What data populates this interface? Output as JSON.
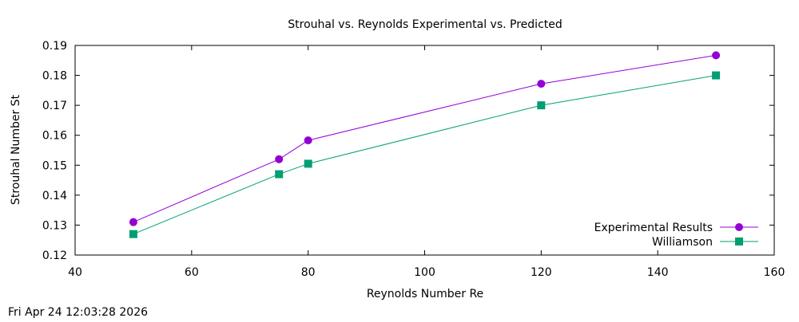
{
  "chart_data": {
    "type": "line",
    "title": "Strouhal vs. Reynolds Experimental vs. Predicted",
    "xlabel": "Reynolds Number Re",
    "ylabel": "Strouhal Number St",
    "xlim": [
      40,
      160
    ],
    "ylim": [
      0.12,
      0.19
    ],
    "xticks": [
      40,
      60,
      80,
      100,
      120,
      140,
      160
    ],
    "yticks": [
      0.12,
      0.13,
      0.14,
      0.15,
      0.16,
      0.17,
      0.18,
      0.19
    ],
    "ytick_labels": [
      "0.12",
      "0.13",
      "0.14",
      "0.15",
      "0.16",
      "0.17",
      "0.18",
      "0.19"
    ],
    "grid": false,
    "legend_position": "bottom-right",
    "series": [
      {
        "name": "Experimental Results",
        "color": "#9400d3",
        "marker": "circle",
        "x": [
          50,
          75,
          80,
          120,
          150
        ],
        "y": [
          0.131,
          0.152,
          0.1583,
          0.1772,
          0.1867
        ]
      },
      {
        "name": "Williamson",
        "color": "#009e73",
        "marker": "square",
        "x": [
          50,
          75,
          80,
          120,
          150
        ],
        "y": [
          0.127,
          0.147,
          0.1505,
          0.17,
          0.18
        ]
      }
    ]
  },
  "timestamp": "Fri Apr 24 12:03:28 2026"
}
